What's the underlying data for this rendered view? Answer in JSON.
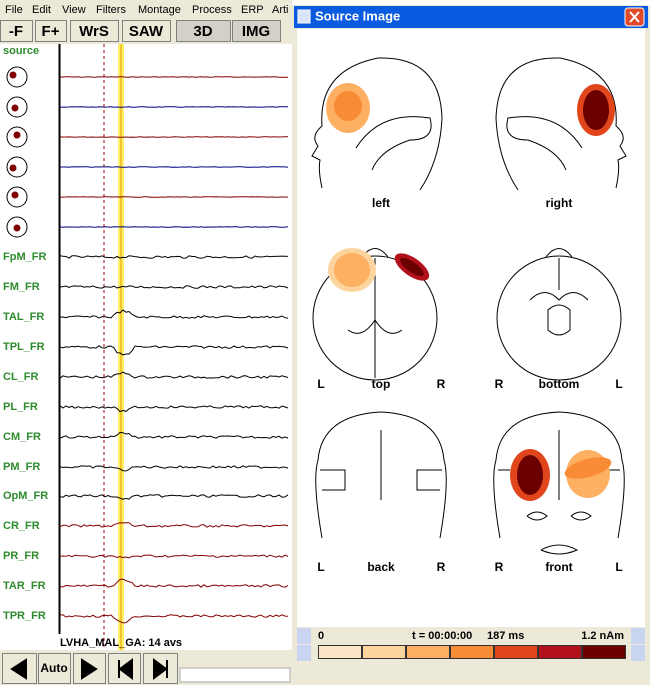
{
  "menu": [
    "File",
    "Edit",
    "View",
    "Filters",
    "Montage",
    "Process",
    "ERP",
    "Arti"
  ],
  "toolbar": [
    "-F",
    "F+",
    "WrS",
    "SAW",
    "3D",
    "IMG"
  ],
  "source_label": "source",
  "channels": [
    "FpM_FR",
    "FM_FR",
    "TAL_FR",
    "TPL_FR",
    "CL_FR",
    "PL_FR",
    "CM_FR",
    "PM_FR",
    "OpM_FR",
    "CR_FR",
    "PR_FR",
    "TAR_FR",
    "TPR_FR"
  ],
  "status": "LVHA_MAL_GA: 14 avs",
  "nav_auto": "Auto",
  "window": {
    "title": "Source Image",
    "views": [
      {
        "label": "left"
      },
      {
        "label": "right"
      },
      {
        "label": "top",
        "left_mark": "L",
        "right_mark": "R"
      },
      {
        "label": "bottom",
        "left_mark": "R",
        "right_mark": "L"
      },
      {
        "label": "back",
        "left_mark": "L",
        "right_mark": "R"
      },
      {
        "label": "front",
        "left_mark": "R",
        "right_mark": "L"
      }
    ],
    "colorbar": {
      "min": "0",
      "time": "t = 00:00:00",
      "latency": "187 ms",
      "max": "1.2 nAm"
    }
  }
}
